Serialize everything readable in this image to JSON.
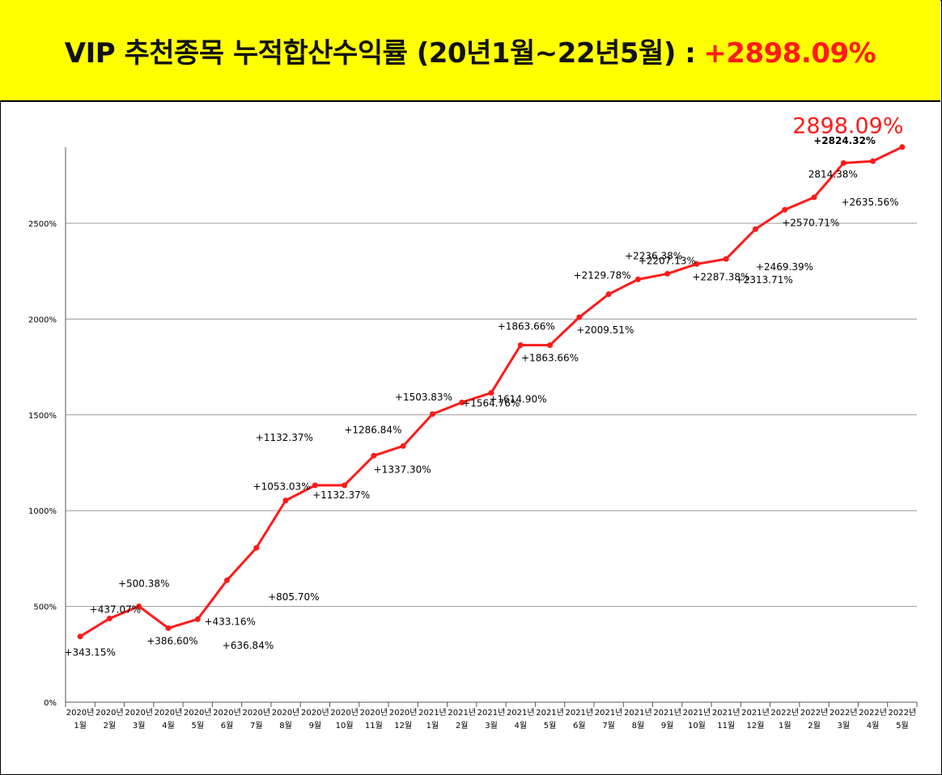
{
  "header": {
    "title": "VIP 추천종목 누적합산수익률 (20년1월~22년5월) :",
    "total": "+2898.09%",
    "total_color": "#ff1a1a",
    "background": "#ffff00"
  },
  "chart_data": {
    "type": "line",
    "title": "",
    "xlabel": "",
    "ylabel": "",
    "ylim": [
      0,
      2900
    ],
    "yticks": [
      0,
      500,
      1000,
      1500,
      2000,
      2500
    ],
    "ytick_labels": [
      "0%",
      "500%",
      "1000%",
      "1500%",
      "2000%",
      "2500%"
    ],
    "grid": true,
    "line_color": "#ff1a1a",
    "categories": [
      [
        "2020년",
        "1월"
      ],
      [
        "2020년",
        "2월"
      ],
      [
        "2020년",
        "3월"
      ],
      [
        "2020년",
        "4월"
      ],
      [
        "2020년",
        "5월"
      ],
      [
        "2020년",
        "6월"
      ],
      [
        "2020년",
        "7월"
      ],
      [
        "2020년",
        "8월"
      ],
      [
        "2020년",
        "9월"
      ],
      [
        "2020년",
        "10월"
      ],
      [
        "2020년",
        "11월"
      ],
      [
        "2020년",
        "12월"
      ],
      [
        "2021년",
        "1월"
      ],
      [
        "2021년",
        "2월"
      ],
      [
        "2021년",
        "3월"
      ],
      [
        "2021년",
        "4월"
      ],
      [
        "2021년",
        "5월"
      ],
      [
        "2021년",
        "6월"
      ],
      [
        "2021년",
        "7월"
      ],
      [
        "2021년",
        "8월"
      ],
      [
        "2021년",
        "9월"
      ],
      [
        "2021년",
        "10월"
      ],
      [
        "2021년",
        "11월"
      ],
      [
        "2021년",
        "12월"
      ],
      [
        "2022년",
        "1월"
      ],
      [
        "2022년",
        "2월"
      ],
      [
        "2022년",
        "3월"
      ],
      [
        "2022년",
        "4월"
      ],
      [
        "2022년",
        "5월"
      ]
    ],
    "values": [
      343.15,
      437.07,
      500.38,
      386.6,
      433.16,
      636.84,
      805.7,
      1053.03,
      1132.37,
      1132.37,
      1286.84,
      1337.3,
      1503.83,
      1564.76,
      1614.9,
      1863.66,
      1863.66,
      2009.51,
      2129.78,
      2207.13,
      2236.38,
      2287.38,
      2313.71,
      2469.39,
      2570.71,
      2635.56,
      2814.38,
      2824.32,
      2898.09
    ],
    "labels": [
      "+343.15%",
      "+437.07%",
      "+500.38%",
      "+386.60%",
      "+433.16%",
      "+636.84%",
      "+805.70%",
      "+1053.03%",
      "+1132.37%",
      "+1132.37%",
      "+1286.84%",
      "+1337.30%",
      "+1503.83%",
      "+1564.76%",
      "+1614.90%",
      "+1863.66%",
      "+1863.66%",
      "+2009.51%",
      "+2129.78%",
      "+2207.13%",
      "+2236.38%",
      "+2287.38%",
      "+2313.71%",
      "+2469.39%",
      "+2570.71%",
      "+2635.56%",
      "2814.38%",
      "+2824.32%",
      "2898.09%"
    ]
  }
}
